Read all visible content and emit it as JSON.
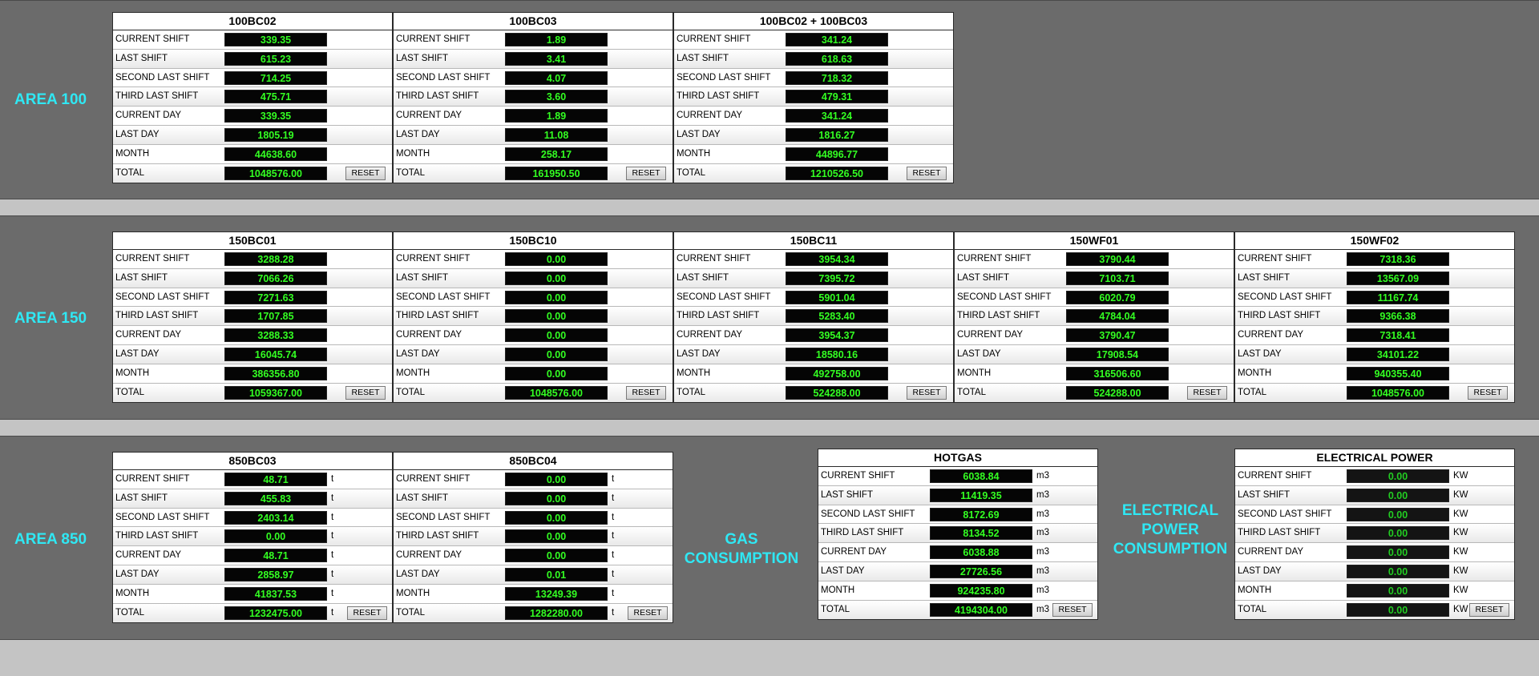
{
  "row_labels": [
    "CURRENT SHIFT",
    "LAST SHIFT",
    "SECOND LAST SHIFT",
    "THIRD LAST SHIFT",
    "CURRENT DAY",
    "LAST DAY",
    "MONTH",
    "TOTAL"
  ],
  "reset_label": "RESET",
  "area100": {
    "label": "AREA 100",
    "panels": [
      {
        "title": "100BC02",
        "values": [
          "339.35",
          "615.23",
          "714.25",
          "475.71",
          "339.35",
          "1805.19",
          "44638.60",
          "1048576.00"
        ]
      },
      {
        "title": "100BC03",
        "values": [
          "1.89",
          "3.41",
          "4.07",
          "3.60",
          "1.89",
          "11.08",
          "258.17",
          "161950.50"
        ]
      },
      {
        "title": "100BC02 + 100BC03",
        "values": [
          "341.24",
          "618.63",
          "718.32",
          "479.31",
          "341.24",
          "1816.27",
          "44896.77",
          "1210526.50"
        ]
      }
    ]
  },
  "area150": {
    "label": "AREA 150",
    "panels": [
      {
        "title": "150BC01",
        "values": [
          "3288.28",
          "7066.26",
          "7271.63",
          "1707.85",
          "3288.33",
          "16045.74",
          "386356.80",
          "1059367.00"
        ]
      },
      {
        "title": "150BC10",
        "values": [
          "0.00",
          "0.00",
          "0.00",
          "0.00",
          "0.00",
          "0.00",
          "0.00",
          "1048576.00"
        ]
      },
      {
        "title": "150BC11",
        "values": [
          "3954.34",
          "7395.72",
          "5901.04",
          "5283.40",
          "3954.37",
          "18580.16",
          "492758.00",
          "524288.00"
        ]
      },
      {
        "title": "150WF01",
        "values": [
          "3790.44",
          "7103.71",
          "6020.79",
          "4784.04",
          "3790.47",
          "17908.54",
          "316506.60",
          "524288.00"
        ]
      },
      {
        "title": "150WF02",
        "values": [
          "7318.36",
          "13567.09",
          "11167.74",
          "9366.38",
          "7318.41",
          "34101.22",
          "940355.40",
          "1048576.00"
        ]
      }
    ]
  },
  "area850": {
    "label": "AREA 850",
    "unit": "t",
    "panels": [
      {
        "title": "850BC03",
        "values": [
          "48.71",
          "455.83",
          "2403.14",
          "0.00",
          "48.71",
          "2858.97",
          "41837.53",
          "1232475.00"
        ]
      },
      {
        "title": "850BC04",
        "values": [
          "0.00",
          "0.00",
          "0.00",
          "0.00",
          "0.00",
          "0.01",
          "13249.39",
          "1282280.00"
        ]
      }
    ]
  },
  "gas": {
    "label": "GAS CONSUMPTION",
    "title": "HOTGAS",
    "unit": "m3",
    "values": [
      "6038.84",
      "11419.35",
      "8172.69",
      "8134.52",
      "6038.88",
      "27726.56",
      "924235.80",
      "4194304.00"
    ]
  },
  "power": {
    "label": "ELECTRICAL POWER CONSUMPTION",
    "title": "ELECTRICAL POWER",
    "unit": "KW",
    "values": [
      "0.00",
      "0.00",
      "0.00",
      "0.00",
      "0.00",
      "0.00",
      "0.00",
      "0.00"
    ]
  },
  "colors": {
    "background": "#6b6b6b",
    "area_label": "#2fe8f4",
    "value_text": "#33ff22",
    "value_bg": "#050505"
  }
}
